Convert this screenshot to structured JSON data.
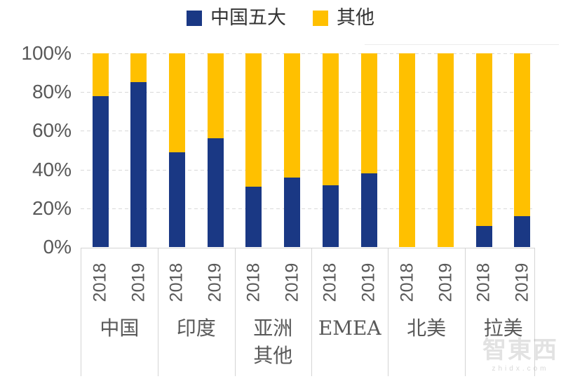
{
  "legend": {
    "items": [
      {
        "label": "中国五大",
        "color": "#1A3884"
      },
      {
        "label": "其他",
        "color": "#FFC000"
      }
    ]
  },
  "y_axis": {
    "tick_labels": [
      "100%",
      "80%",
      "60%",
      "40%",
      "20%",
      "0%"
    ]
  },
  "x_axis": {
    "year_labels": [
      "2018",
      "2019",
      "2018",
      "2019",
      "2018",
      "2019",
      "2018",
      "2019",
      "2018",
      "2019",
      "2018",
      "2019"
    ],
    "group_labels": [
      {
        "label": "中国",
        "lines": [
          "中国"
        ]
      },
      {
        "label": "印度",
        "lines": [
          "印度"
        ]
      },
      {
        "label": "亚洲其他",
        "lines": [
          "亚洲",
          "其他"
        ]
      },
      {
        "label": "EMEA",
        "lines": [
          "EMEA"
        ]
      },
      {
        "label": "北美",
        "lines": [
          "北美"
        ]
      },
      {
        "label": "拉美",
        "lines": [
          "拉美"
        ]
      }
    ]
  },
  "chart_data": {
    "type": "bar",
    "stacked": true,
    "percent_stacked": true,
    "categories": [
      "中国 2018",
      "中国 2019",
      "印度 2018",
      "印度 2019",
      "亚洲其他 2018",
      "亚洲其他 2019",
      "EMEA 2018",
      "EMEA 2019",
      "北美 2018",
      "北美 2019",
      "拉美 2018",
      "拉美 2019"
    ],
    "groups": [
      "中国",
      "印度",
      "亚洲其他",
      "EMEA",
      "北美",
      "拉美"
    ],
    "years": [
      "2018",
      "2019"
    ],
    "series": [
      {
        "name": "中国五大",
        "color": "#1A3884",
        "values": [
          78,
          85,
          49,
          56,
          31,
          36,
          32,
          38,
          0,
          0,
          11,
          16
        ]
      },
      {
        "name": "其他",
        "color": "#FFC000",
        "values": [
          22,
          15,
          51,
          44,
          69,
          64,
          68,
          62,
          100,
          100,
          89,
          84
        ]
      }
    ],
    "ylim": [
      0,
      100
    ],
    "y_tick_step": 20,
    "gridlines": "dashed-horizontal",
    "legend_position": "top"
  },
  "watermark": {
    "brand": "智東西",
    "domain": "zhidx.com"
  },
  "colors": {
    "series_blue": "#1A3884",
    "series_yellow": "#FFC000",
    "gridline": "#D9D9D9",
    "axis_text": "#595959",
    "divider": "#D4D4D4"
  }
}
